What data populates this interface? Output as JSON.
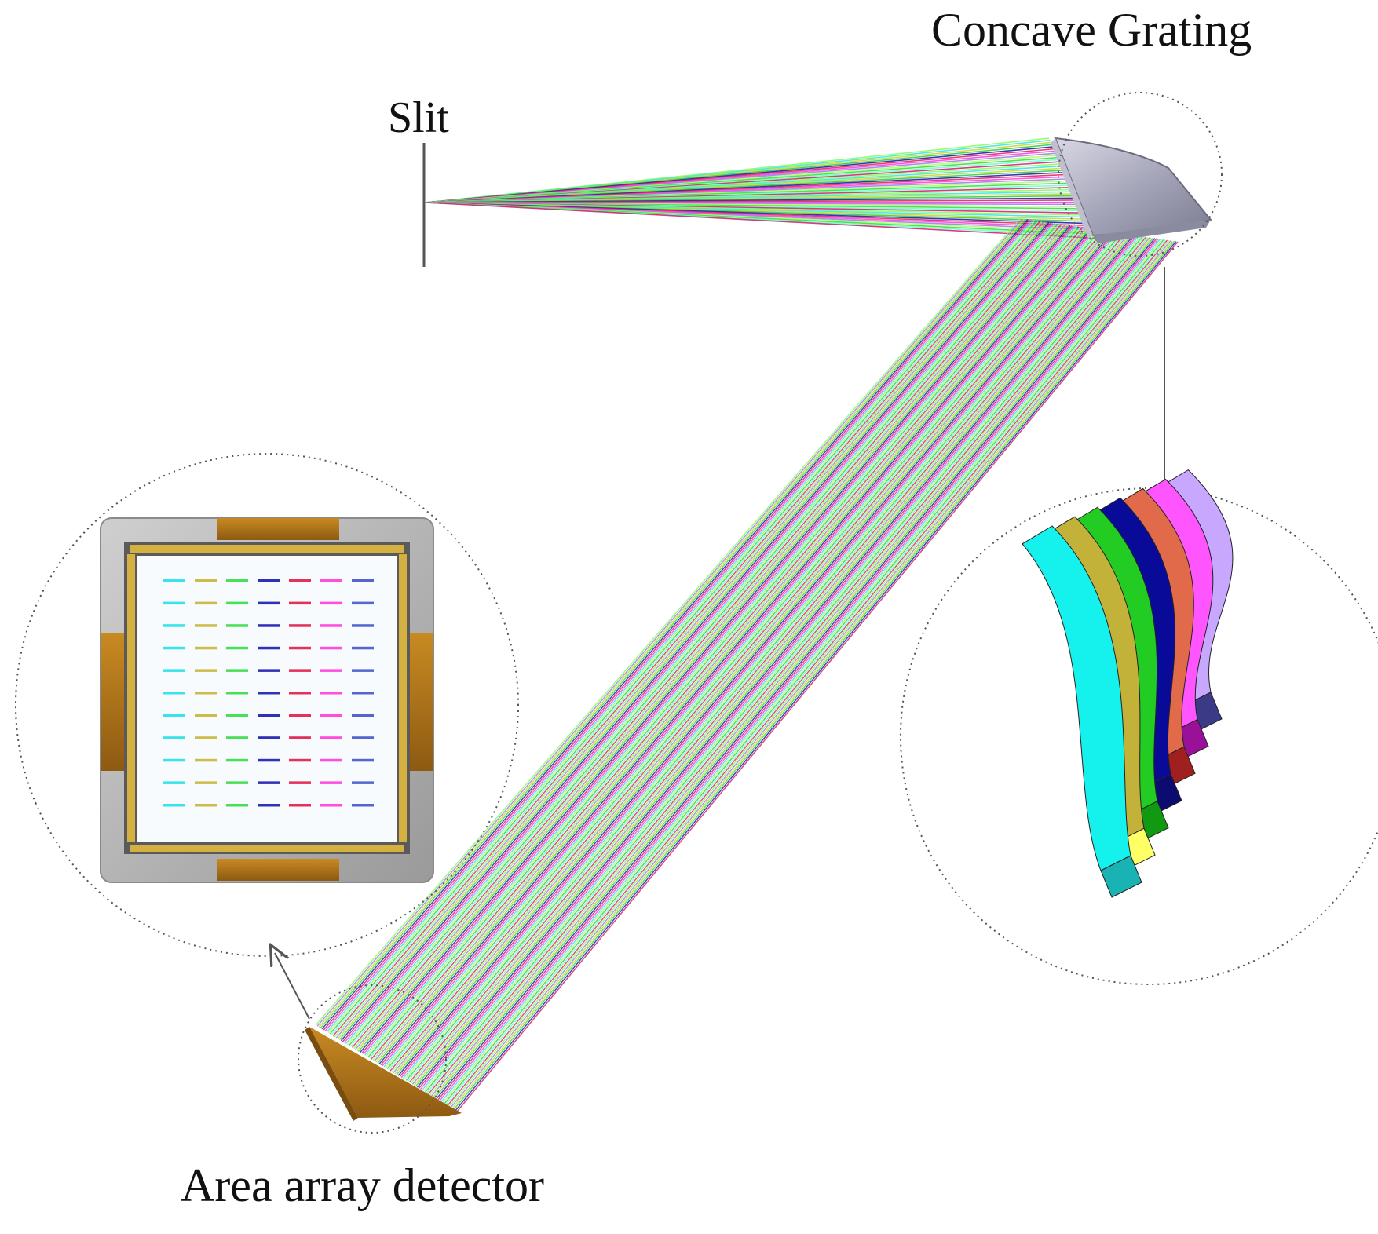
{
  "labels": {
    "concave_grating": "Concave Grating",
    "slit": "Slit",
    "area_array_detector": "Area array detector"
  },
  "colors": {
    "background": "#ffffff",
    "grating_body": "#a9a9bb",
    "detector_copper": "#b77a1e",
    "detector_frame": "#bdbdbd",
    "callout_line": "#555555",
    "dotted_circle": "#555555"
  },
  "ray_colors": [
    "#7fff5a",
    "#35e6e0",
    "#c8d630",
    "#2ecc40",
    "#1515a8",
    "#e0205a",
    "#ff3ae0",
    "#9a7ae8",
    "#aaff66",
    "#33dd33",
    "#66ffcc",
    "#d11a6a"
  ],
  "grating_zoom_facets": [
    "#15f2ee",
    "#18b3b2",
    "#c3b23a",
    "#ffff66",
    "#22cc22",
    "#119911",
    "#0a0a99",
    "#0c0c70",
    "#e06a4a",
    "#a02020",
    "#ff55ff",
    "#991199",
    "#c8a8ff",
    "#3a3a88"
  ],
  "detector_zoom_dash_colors": [
    "#22e0e8",
    "#c9b536",
    "#33dd44",
    "#1a1ab0",
    "#e11b4a",
    "#ff3ad8",
    "#4455cc"
  ]
}
